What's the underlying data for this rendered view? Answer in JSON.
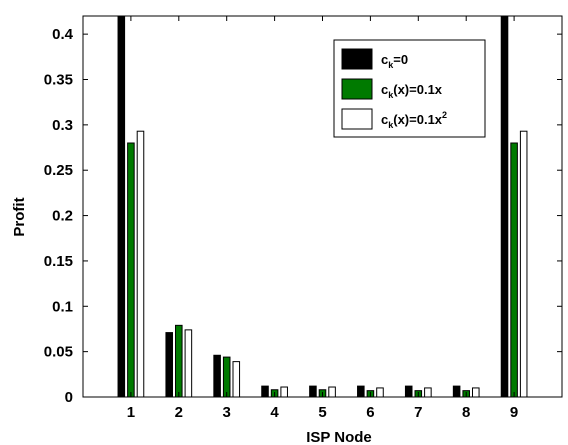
{
  "chart_data": {
    "type": "bar",
    "xlabel": "ISP Node",
    "ylabel": "Profit",
    "ylim": [
      0,
      0.42
    ],
    "yticks": [
      0,
      0.05,
      0.1,
      0.15,
      0.2,
      0.25,
      0.3,
      0.35,
      0.4
    ],
    "ytick_labels": [
      "0",
      "0.05",
      "0.1",
      "0.15",
      "0.2",
      "0.25",
      "0.3",
      "0.35",
      "0.4"
    ],
    "categories": [
      "1",
      "2",
      "3",
      "4",
      "5",
      "6",
      "7",
      "8",
      "9"
    ],
    "legend_position": "top-right",
    "grid": false,
    "series": [
      {
        "name": "c_k=0",
        "name_parts": {
          "base": "c",
          "sub": "k",
          "rest": "=0",
          "sup": ""
        },
        "color": "#000000",
        "values": [
          0.42,
          0.071,
          0.046,
          0.012,
          0.012,
          0.012,
          0.012,
          0.012,
          0.42
        ]
      },
      {
        "name": "c_k(x)=0.1x",
        "name_parts": {
          "base": "c",
          "sub": "k",
          "rest": "(x)=0.1x",
          "sup": ""
        },
        "color": "#007a00",
        "values": [
          0.28,
          0.079,
          0.044,
          0.008,
          0.008,
          0.007,
          0.007,
          0.007,
          0.28
        ]
      },
      {
        "name": "c_k(x)=0.1x^2",
        "name_parts": {
          "base": "c",
          "sub": "k",
          "rest": "(x)=0.1x",
          "sup": "2"
        },
        "color": "#ffffff",
        "values": [
          0.293,
          0.074,
          0.039,
          0.011,
          0.011,
          0.01,
          0.01,
          0.01,
          0.293
        ]
      }
    ]
  }
}
